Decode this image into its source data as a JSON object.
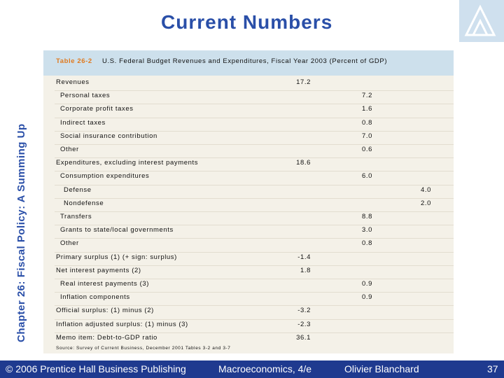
{
  "sidebar": "Chapter 26: Fiscal Policy: A Summing Up",
  "title": "Current Numbers",
  "table": {
    "caption": {
      "label": "Table 26-2",
      "text": "U.S. Federal Budget Revenues and Expenditures, Fiscal Year 2003 (Percent of GDP)"
    },
    "rows": [
      [
        "Revenues",
        "17.2",
        null,
        null
      ],
      [
        "Personal taxes",
        null,
        "7.2",
        null
      ],
      [
        "Corporate profit taxes",
        null,
        "1.6",
        null
      ],
      [
        "Indirect taxes",
        null,
        "0.8",
        null
      ],
      [
        "Social insurance contribution",
        null,
        "7.0",
        null
      ],
      [
        "Other",
        null,
        "0.6",
        null
      ],
      [
        "Expenditures, excluding interest payments",
        "18.6",
        null,
        null
      ],
      [
        "Consumption expenditures",
        null,
        "6.0",
        null
      ],
      [
        "Defense",
        null,
        null,
        "4.0"
      ],
      [
        "Nondefense",
        null,
        null,
        "2.0"
      ],
      [
        "Transfers",
        null,
        "8.8",
        null
      ],
      [
        "Grants to state/local governments",
        null,
        "3.0",
        null
      ],
      [
        "Other",
        null,
        "0.8",
        null
      ],
      [
        "Primary surplus (1) (+ sign: surplus)",
        "-1.4",
        null,
        null
      ],
      [
        "Net interest payments (2)",
        "1.8",
        null,
        null
      ],
      [
        "Real interest payments (3)",
        null,
        "0.9",
        null
      ],
      [
        "Inflation components",
        null,
        "0.9",
        null
      ],
      [
        "Official surplus: (1) minus (2)",
        "-3.2",
        null,
        null
      ],
      [
        "Inflation adjusted surplus: (1) minus (3)",
        "-2.3",
        null,
        null
      ],
      [
        "Memo item:  Debt-to-GDP ratio",
        "36.1",
        null,
        null
      ]
    ],
    "source": "Source:  Survey of Current Business, December 2001 Tables 3-2 and 3-7"
  },
  "footer": {
    "copyright": "© 2006 Prentice Hall Business Publishing",
    "book": "Macroeconomics, 4/e",
    "author": "Olivier Blanchard",
    "page": "37"
  }
}
